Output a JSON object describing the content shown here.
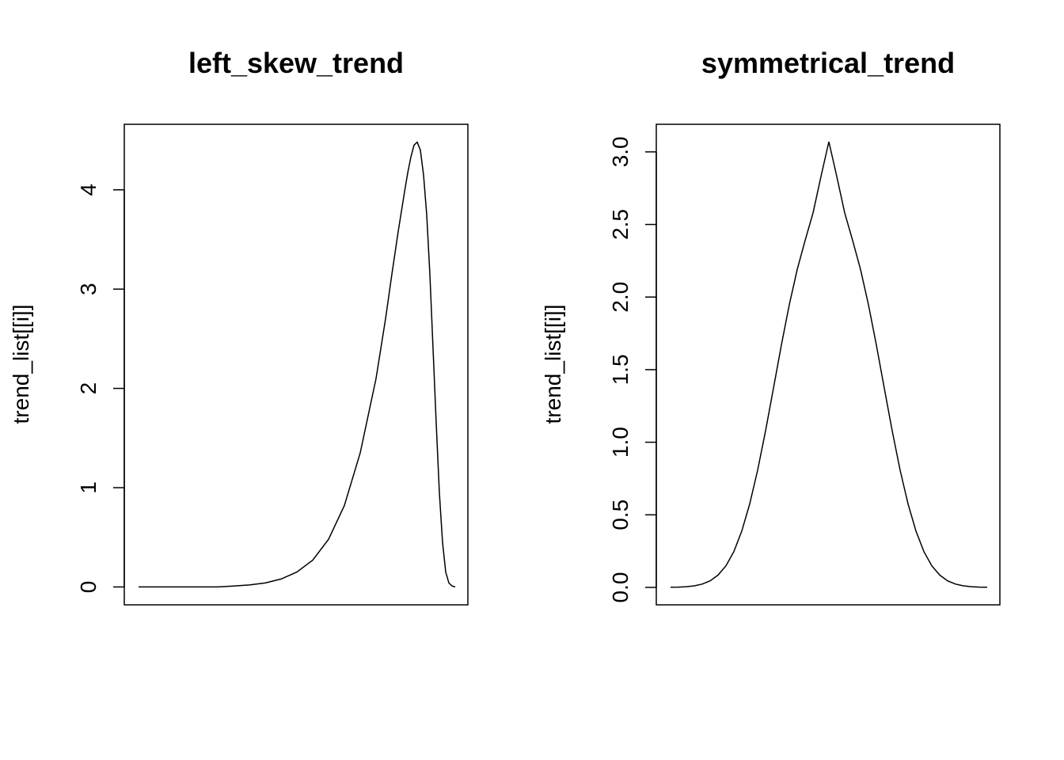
{
  "colors": {
    "background": "#ffffff",
    "line": "#000000",
    "axis": "#000000"
  },
  "chart_data": [
    {
      "type": "line",
      "title": "left_skew_trend",
      "xlabel": "",
      "ylabel": "trend_list[[i]]",
      "y_ticks": [
        0,
        1,
        2,
        3,
        4
      ],
      "y_tick_labels": [
        "0",
        "1",
        "2",
        "3",
        "4"
      ],
      "ylim": [
        -0.18,
        4.66
      ],
      "x_axis_shown": false,
      "grid": false,
      "x": [
        0.0,
        0.05,
        0.1,
        0.15,
        0.2,
        0.25,
        0.3,
        0.35,
        0.4,
        0.45,
        0.5,
        0.55,
        0.6,
        0.65,
        0.7,
        0.75,
        0.78,
        0.8,
        0.82,
        0.84,
        0.85,
        0.86,
        0.87,
        0.88,
        0.89,
        0.9,
        0.91,
        0.92,
        0.93,
        0.94,
        0.95,
        0.96,
        0.97,
        0.98,
        0.99,
        1.0
      ],
      "y": [
        0.0,
        0.0,
        0.0,
        0.0,
        0.0,
        0.0,
        0.01,
        0.02,
        0.04,
        0.08,
        0.15,
        0.27,
        0.48,
        0.82,
        1.35,
        2.1,
        2.7,
        3.15,
        3.58,
        3.98,
        4.17,
        4.33,
        4.45,
        4.48,
        4.4,
        4.15,
        3.75,
        3.15,
        2.4,
        1.65,
        0.95,
        0.45,
        0.15,
        0.04,
        0.01,
        0.0
      ]
    },
    {
      "type": "line",
      "title": "symmetrical_trend",
      "xlabel": "",
      "ylabel": "trend_list[[i]]",
      "y_ticks": [
        0.0,
        0.5,
        1.0,
        1.5,
        2.0,
        2.5,
        3.0
      ],
      "y_tick_labels": [
        "0.0",
        "0.5",
        "1.0",
        "1.5",
        "2.0",
        "2.5",
        "3.0"
      ],
      "ylim": [
        -0.12,
        3.19
      ],
      "x_axis_shown": false,
      "grid": false,
      "x": [
        0.0,
        0.025,
        0.05,
        0.075,
        0.1,
        0.125,
        0.15,
        0.175,
        0.2,
        0.225,
        0.25,
        0.275,
        0.3,
        0.325,
        0.35,
        0.375,
        0.4,
        0.425,
        0.45,
        0.475,
        0.5,
        0.525,
        0.55,
        0.575,
        0.6,
        0.625,
        0.65,
        0.675,
        0.7,
        0.725,
        0.75,
        0.775,
        0.8,
        0.825,
        0.85,
        0.875,
        0.9,
        0.925,
        0.95,
        0.975,
        1.0
      ],
      "y": [
        0.001,
        0.002,
        0.005,
        0.011,
        0.023,
        0.045,
        0.085,
        0.149,
        0.247,
        0.388,
        0.575,
        0.807,
        1.078,
        1.372,
        1.669,
        1.947,
        2.19,
        2.39,
        2.58,
        2.83,
        3.07,
        2.83,
        2.58,
        2.39,
        2.19,
        1.947,
        1.669,
        1.372,
        1.078,
        0.807,
        0.575,
        0.388,
        0.247,
        0.149,
        0.085,
        0.045,
        0.023,
        0.011,
        0.005,
        0.002,
        0.001
      ]
    }
  ]
}
